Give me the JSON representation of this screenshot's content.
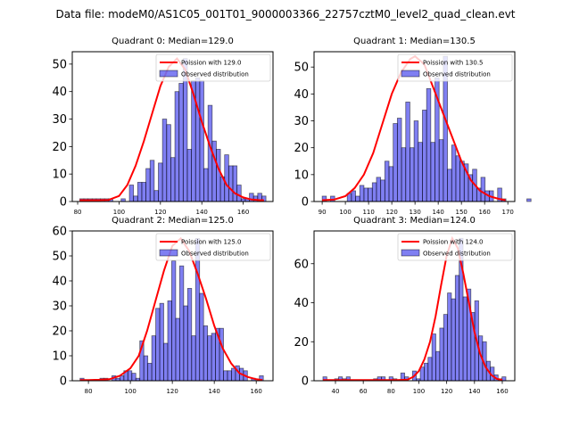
{
  "figure": {
    "suptitle": "Data file: modeM0/AS1C05_001T01_9000003366_22757cztM0_level2_quad_clean.evt"
  },
  "chart_data": [
    {
      "type": "bar",
      "title": "Quadrant 0: Median=129.0",
      "xlabel": "",
      "ylabel": "",
      "xlim": [
        77.4,
        174.4
      ],
      "ylim": [
        0,
        54.5
      ],
      "xticks": [
        80,
        100,
        120,
        140,
        160
      ],
      "yticks": [
        0,
        10,
        20,
        30,
        40,
        50
      ],
      "grid": false,
      "legend": {
        "placement": "top-right",
        "entries": [
          "Poission with 129.0",
          "Observed distribution"
        ]
      },
      "series": [
        {
          "name": "Observed distribution",
          "kind": "histogram",
          "bin_start": 81,
          "bin_width": 2,
          "values": [
            1,
            1,
            1,
            1,
            1,
            1,
            1,
            1,
            0,
            0,
            1,
            0,
            6,
            2,
            7,
            7,
            12,
            15,
            4,
            14,
            30,
            28,
            16,
            40,
            43,
            52,
            19,
            44,
            45,
            44,
            12,
            35,
            22,
            19,
            9,
            17,
            13,
            13,
            6,
            1,
            1,
            3,
            2,
            3,
            2
          ]
        },
        {
          "name": "Poission with 129.0",
          "kind": "line",
          "x": [
            81,
            85,
            90,
            95,
            100,
            104,
            108,
            112,
            116,
            120,
            124,
            128,
            132,
            136,
            140,
            144,
            148,
            152,
            156,
            160,
            164,
            168,
            170
          ],
          "y": [
            0.5,
            0.5,
            0.5,
            0.6,
            2,
            6,
            13,
            22,
            32,
            42,
            49,
            52,
            48,
            39,
            29,
            20,
            12,
            6,
            3,
            1.5,
            0.7,
            0.5,
            0.5
          ]
        }
      ]
    },
    {
      "type": "bar",
      "title": "Quadrant 1: Median=130.5",
      "xlabel": "",
      "ylabel": "",
      "xlim": [
        86.5,
        173.0
      ],
      "ylim": [
        0,
        55.7
      ],
      "xticks": [
        90,
        100,
        110,
        120,
        130,
        140,
        150,
        160,
        170
      ],
      "yticks": [
        0,
        10,
        20,
        30,
        40,
        50
      ],
      "grid": false,
      "legend": {
        "placement": "top-right",
        "entries": [
          "Poission with 130.5",
          "Observed distribution"
        ]
      },
      "series": [
        {
          "name": "Observed distribution",
          "kind": "histogram",
          "bin_start": 90,
          "bin_width": 1.8,
          "values": [
            2,
            0,
            2,
            0,
            0,
            0,
            3,
            4,
            2,
            6,
            5,
            5,
            7,
            9,
            8,
            15,
            13,
            29,
            31,
            20,
            37,
            20,
            30,
            22,
            34,
            42,
            22,
            46,
            23,
            54,
            12,
            21,
            17,
            15,
            14,
            10,
            12,
            5,
            9,
            4,
            4,
            0,
            5,
            1,
            0,
            0,
            0,
            0,
            0,
            1
          ]
        },
        {
          "name": "Poission with 130.5",
          "kind": "line",
          "x": [
            90,
            95,
            100,
            104,
            108,
            112,
            116,
            120,
            124,
            128,
            130,
            134,
            138,
            142,
            146,
            150,
            154,
            158,
            162,
            166,
            169
          ],
          "y": [
            0.5,
            0.7,
            2,
            5,
            10,
            18,
            29,
            40,
            48,
            53,
            54,
            51,
            42,
            33,
            24,
            15,
            8,
            4,
            2,
            1,
            0.5
          ]
        }
      ]
    },
    {
      "type": "bar",
      "title": "Quadrant 2: Median=125.0",
      "xlabel": "",
      "ylabel": "",
      "xlim": [
        72.3,
        168.0
      ],
      "ylim": [
        0,
        60
      ],
      "xticks": [
        80,
        100,
        120,
        140,
        160
      ],
      "yticks": [
        0,
        10,
        20,
        30,
        40,
        50,
        60
      ],
      "grid": false,
      "legend": {
        "placement": "top-right",
        "entries": [
          "Poission with 125.0",
          "Observed distribution"
        ]
      },
      "series": [
        {
          "name": "Observed distribution",
          "kind": "histogram",
          "bin_start": 76,
          "bin_width": 1.9,
          "values": [
            1,
            0,
            0,
            0,
            0,
            1,
            1,
            0,
            2,
            1,
            2,
            4,
            4,
            3,
            1,
            16,
            10,
            7,
            18,
            29,
            31,
            15,
            32,
            48,
            25,
            46,
            30,
            37,
            18,
            57,
            35,
            22,
            18,
            19,
            21,
            21,
            4,
            4,
            5,
            6,
            5,
            4,
            0,
            1,
            0,
            2
          ]
        },
        {
          "name": "Poission with 125.0",
          "kind": "line",
          "x": [
            76,
            80,
            85,
            90,
            95,
            100,
            104,
            108,
            112,
            116,
            120,
            124,
            128,
            132,
            136,
            140,
            144,
            148,
            152,
            156,
            160,
            163
          ],
          "y": [
            0.3,
            0.3,
            0.4,
            0.6,
            2,
            5,
            10,
            20,
            32,
            44,
            54,
            57,
            52,
            43,
            33,
            22,
            13,
            7,
            3,
            1.5,
            0.6,
            0.3
          ]
        }
      ]
    },
    {
      "type": "bar",
      "title": "Quadrant 3: Median=124.0",
      "xlabel": "",
      "ylabel": "",
      "xlim": [
        24.6,
        169.0
      ],
      "ylim": [
        0,
        76.8
      ],
      "xticks": [
        40,
        60,
        80,
        100,
        120,
        140,
        160
      ],
      "yticks": [
        0,
        20,
        40,
        60
      ],
      "grid": false,
      "legend": {
        "placement": "top-right",
        "entries": [
          "Poission with 124.0",
          "Observed distribution"
        ]
      },
      "series": [
        {
          "name": "Observed distribution",
          "kind": "histogram",
          "bin_start": 31,
          "bin_width": 2.8,
          "values": [
            2,
            0,
            0,
            1,
            2,
            1,
            2,
            0,
            0,
            0,
            0,
            0,
            0,
            1,
            2,
            2,
            0,
            2,
            1,
            0,
            4,
            2,
            0,
            5,
            1,
            7,
            9,
            12,
            24,
            15,
            27,
            34,
            45,
            42,
            54,
            73,
            43,
            47,
            35,
            41,
            23,
            20,
            10,
            7,
            3,
            1,
            2
          ]
        },
        {
          "name": "Poission with 124.0",
          "kind": "line",
          "x": [
            31,
            50,
            70,
            85,
            92,
            96,
            100,
            104,
            108,
            112,
            116,
            120,
            124,
            128,
            132,
            136,
            140,
            144,
            148,
            152,
            156,
            160
          ],
          "y": [
            0.3,
            0.3,
            0.3,
            0.3,
            0.6,
            2,
            5,
            11,
            20,
            33,
            49,
            64,
            73,
            68,
            55,
            40,
            25,
            14,
            7,
            3,
            1,
            0.4
          ]
        }
      ]
    }
  ]
}
